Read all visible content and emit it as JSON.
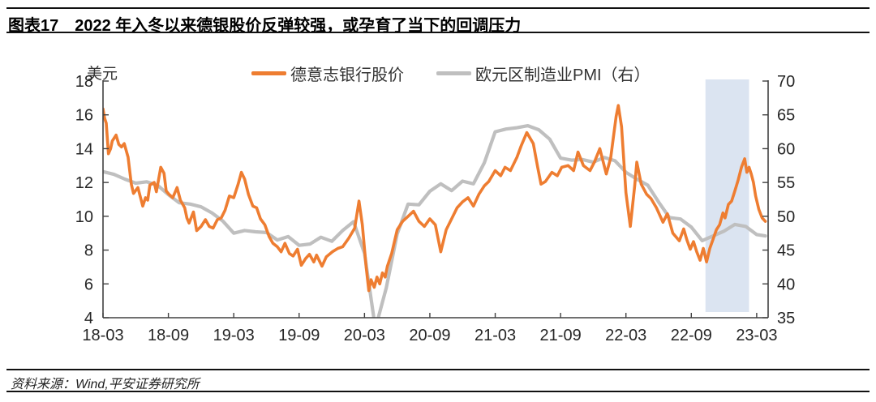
{
  "header": {
    "tag": "图表17",
    "title": "2022 年入冬以来德银股价反弹较强，或孕育了当下的回调压力"
  },
  "footer": {
    "source": "资料来源：Wind,平安证券研究所"
  },
  "chart_data": {
    "type": "line",
    "unit_label": "美元",
    "legend": [
      {
        "label": "德意志银行股价",
        "color": "#EE7D31"
      },
      {
        "label": "欧元区制造业PMI（右）",
        "color": "#BFBFBF"
      }
    ],
    "x_ticks": [
      "18-03",
      "18-09",
      "19-03",
      "19-09",
      "20-03",
      "20-09",
      "21-03",
      "21-09",
      "22-03",
      "22-09",
      "23-03"
    ],
    "x_tick_interval_months": 6,
    "left_axis": {
      "min": 4,
      "max": 18,
      "ticks": [
        18,
        16,
        14,
        12,
        10,
        8,
        6,
        4
      ]
    },
    "right_axis": {
      "min": 35,
      "max": 70,
      "ticks": [
        70,
        65,
        60,
        55,
        50,
        45,
        40,
        35
      ]
    },
    "highlight_region": {
      "start_month_index": 55.3,
      "end_month_index": 59.3,
      "color": "#DBE4F1",
      "note": "2022-10 ~ 2023-02"
    },
    "axis_color": "#404040",
    "label_color": "#262626",
    "series": [
      {
        "name": "欧元区制造业PMI（右）",
        "axis": "right",
        "color": "#BFBFBF",
        "width": 4.2,
        "start": "2018-03",
        "cadence": "monthly",
        "points": [
          [
            0,
            56.6
          ],
          [
            1,
            56.2
          ],
          [
            2,
            55.5
          ],
          [
            3,
            54.9
          ],
          [
            4,
            55.1
          ],
          [
            5,
            54.6
          ],
          [
            6,
            53.2
          ],
          [
            7,
            52.0
          ],
          [
            8,
            51.8
          ],
          [
            9,
            51.4
          ],
          [
            10,
            50.5
          ],
          [
            11,
            49.3
          ],
          [
            12,
            47.5
          ],
          [
            13,
            47.9
          ],
          [
            14,
            47.7
          ],
          [
            15,
            47.6
          ],
          [
            16,
            46.5
          ],
          [
            17,
            47.0
          ],
          [
            18,
            45.7
          ],
          [
            19,
            45.9
          ],
          [
            20,
            46.9
          ],
          [
            21,
            46.3
          ],
          [
            22,
            47.9
          ],
          [
            23,
            49.2
          ],
          [
            24,
            44.5
          ],
          [
            25,
            33.4
          ],
          [
            26,
            39.4
          ],
          [
            27,
            47.4
          ],
          [
            28,
            51.8
          ],
          [
            29,
            51.7
          ],
          [
            30,
            53.7
          ],
          [
            31,
            54.8
          ],
          [
            32,
            53.8
          ],
          [
            33,
            55.2
          ],
          [
            34,
            54.8
          ],
          [
            35,
            57.9
          ],
          [
            36,
            62.5
          ],
          [
            37,
            62.9
          ],
          [
            38,
            63.1
          ],
          [
            39,
            63.4
          ],
          [
            40,
            62.8
          ],
          [
            41,
            61.4
          ],
          [
            42,
            58.6
          ],
          [
            43,
            58.3
          ],
          [
            44,
            58.4
          ],
          [
            45,
            58.0
          ],
          [
            46,
            58.7
          ],
          [
            47,
            58.2
          ],
          [
            48,
            56.5
          ],
          [
            49,
            55.5
          ],
          [
            50,
            54.6
          ],
          [
            51,
            52.1
          ],
          [
            52,
            49.8
          ],
          [
            53,
            49.6
          ],
          [
            54,
            48.4
          ],
          [
            55,
            46.4
          ],
          [
            56,
            47.1
          ],
          [
            57,
            47.8
          ],
          [
            58,
            48.8
          ],
          [
            59,
            48.5
          ],
          [
            60,
            47.3
          ],
          [
            60.8,
            47.1
          ]
        ]
      },
      {
        "name": "德意志银行股价",
        "axis": "left",
        "color": "#EE7D31",
        "width": 3.6,
        "start": "2018-03",
        "cadence": "irregular-daily-trace",
        "points": [
          [
            0,
            16.35
          ],
          [
            0.15,
            15.8
          ],
          [
            0.3,
            15.5
          ],
          [
            0.5,
            13.7
          ],
          [
            0.7,
            14.0
          ],
          [
            0.85,
            14.45
          ],
          [
            1.2,
            14.8
          ],
          [
            1.45,
            14.25
          ],
          [
            1.7,
            14.1
          ],
          [
            1.95,
            14.3
          ],
          [
            2.3,
            13.5
          ],
          [
            2.6,
            11.9
          ],
          [
            2.8,
            11.35
          ],
          [
            3.2,
            11.7
          ],
          [
            3.45,
            11.1
          ],
          [
            3.65,
            10.6
          ],
          [
            3.9,
            11.1
          ],
          [
            4.1,
            10.95
          ],
          [
            4.3,
            11.85
          ],
          [
            4.7,
            12.0
          ],
          [
            4.9,
            11.45
          ],
          [
            5.3,
            12.9
          ],
          [
            5.6,
            12.55
          ],
          [
            5.8,
            11.5
          ],
          [
            6.05,
            11.3
          ],
          [
            6.4,
            11.1
          ],
          [
            6.8,
            11.7
          ],
          [
            7.1,
            10.95
          ],
          [
            7.5,
            10.5
          ],
          [
            7.7,
            9.9
          ],
          [
            7.9,
            9.6
          ],
          [
            8.3,
            10.25
          ],
          [
            8.6,
            9.15
          ],
          [
            9.0,
            9.4
          ],
          [
            9.4,
            9.8
          ],
          [
            9.75,
            9.4
          ],
          [
            10.1,
            9.3
          ],
          [
            10.5,
            9.8
          ],
          [
            10.85,
            9.9
          ],
          [
            11.2,
            10.35
          ],
          [
            11.6,
            11.2
          ],
          [
            12.0,
            11.1
          ],
          [
            12.4,
            11.9
          ],
          [
            12.7,
            12.6
          ],
          [
            13.0,
            12.2
          ],
          [
            13.35,
            11.3
          ],
          [
            13.75,
            10.6
          ],
          [
            14.1,
            10.5
          ],
          [
            14.45,
            9.85
          ],
          [
            14.85,
            9.5
          ],
          [
            15.25,
            8.8
          ],
          [
            15.6,
            8.4
          ],
          [
            16.0,
            8.2
          ],
          [
            16.35,
            7.9
          ],
          [
            16.7,
            8.4
          ],
          [
            17.1,
            7.8
          ],
          [
            17.45,
            7.65
          ],
          [
            17.85,
            8.05
          ],
          [
            18.2,
            7.1
          ],
          [
            18.6,
            7.5
          ],
          [
            18.95,
            7.75
          ],
          [
            19.35,
            7.3
          ],
          [
            19.6,
            7.7
          ],
          [
            20.1,
            7.05
          ],
          [
            20.5,
            7.6
          ],
          [
            21.05,
            7.9
          ],
          [
            21.55,
            8.1
          ],
          [
            22.0,
            8.2
          ],
          [
            22.55,
            8.7
          ],
          [
            23.1,
            9.3
          ],
          [
            23.5,
            10.9
          ],
          [
            23.8,
            9.5
          ],
          [
            24.15,
            7.0
          ],
          [
            24.4,
            5.6
          ],
          [
            24.6,
            6.25
          ],
          [
            24.9,
            5.8
          ],
          [
            25.15,
            6.4
          ],
          [
            25.4,
            6.0
          ],
          [
            25.65,
            6.65
          ],
          [
            25.9,
            6.4
          ],
          [
            26.1,
            7.05
          ],
          [
            26.5,
            7.8
          ],
          [
            27.0,
            9.2
          ],
          [
            27.5,
            9.7
          ],
          [
            28.0,
            10.0
          ],
          [
            28.5,
            10.3
          ],
          [
            29.0,
            9.7
          ],
          [
            29.5,
            9.4
          ],
          [
            30.0,
            9.85
          ],
          [
            30.5,
            9.5
          ],
          [
            31.0,
            7.9
          ],
          [
            31.5,
            9.2
          ],
          [
            32.0,
            9.85
          ],
          [
            32.5,
            10.5
          ],
          [
            33.0,
            10.85
          ],
          [
            33.5,
            11.1
          ],
          [
            34.0,
            10.6
          ],
          [
            34.5,
            11.3
          ],
          [
            35.0,
            11.8
          ],
          [
            35.4,
            12.05
          ],
          [
            36.0,
            12.7
          ],
          [
            36.5,
            12.4
          ],
          [
            36.9,
            12.9
          ],
          [
            37.4,
            12.7
          ],
          [
            38.0,
            13.5
          ],
          [
            38.4,
            14.2
          ],
          [
            38.9,
            14.95
          ],
          [
            39.5,
            14.3
          ],
          [
            39.9,
            12.9
          ],
          [
            40.2,
            11.9
          ],
          [
            40.6,
            12.05
          ],
          [
            41.2,
            12.6
          ],
          [
            41.7,
            12.4
          ],
          [
            42.1,
            12.9
          ],
          [
            42.7,
            13.0
          ],
          [
            43.2,
            12.7
          ],
          [
            43.6,
            13.8
          ],
          [
            44.1,
            13.0
          ],
          [
            44.7,
            12.7
          ],
          [
            45.1,
            13.2
          ],
          [
            45.6,
            14.0
          ],
          [
            46.2,
            12.5
          ],
          [
            46.6,
            13.45
          ],
          [
            47.1,
            15.9
          ],
          [
            47.3,
            16.55
          ],
          [
            47.6,
            15.3
          ],
          [
            48.0,
            11.4
          ],
          [
            48.4,
            9.4
          ],
          [
            48.8,
            11.8
          ],
          [
            49.0,
            13.2
          ],
          [
            49.4,
            11.9
          ],
          [
            49.9,
            11.3
          ],
          [
            50.3,
            11.05
          ],
          [
            50.8,
            10.5
          ],
          [
            51.4,
            9.65
          ],
          [
            51.8,
            10.15
          ],
          [
            52.3,
            9.0
          ],
          [
            52.9,
            8.55
          ],
          [
            53.3,
            9.25
          ],
          [
            53.6,
            8.6
          ],
          [
            53.9,
            8.05
          ],
          [
            54.2,
            8.5
          ],
          [
            54.5,
            7.9
          ],
          [
            54.8,
            7.4
          ],
          [
            55.1,
            8.1
          ],
          [
            55.4,
            7.3
          ],
          [
            55.7,
            8.1
          ],
          [
            56.0,
            8.65
          ],
          [
            56.3,
            9.2
          ],
          [
            56.6,
            9.5
          ],
          [
            56.9,
            10.2
          ],
          [
            57.1,
            9.9
          ],
          [
            57.4,
            10.7
          ],
          [
            57.7,
            10.9
          ],
          [
            58.0,
            11.5
          ],
          [
            58.3,
            12.15
          ],
          [
            58.6,
            12.9
          ],
          [
            58.9,
            13.4
          ],
          [
            59.1,
            12.6
          ],
          [
            59.3,
            12.9
          ],
          [
            59.5,
            12.5
          ],
          [
            59.7,
            12.0
          ],
          [
            59.9,
            11.2
          ],
          [
            60.2,
            10.4
          ],
          [
            60.5,
            9.9
          ],
          [
            60.8,
            9.7
          ]
        ]
      }
    ]
  }
}
